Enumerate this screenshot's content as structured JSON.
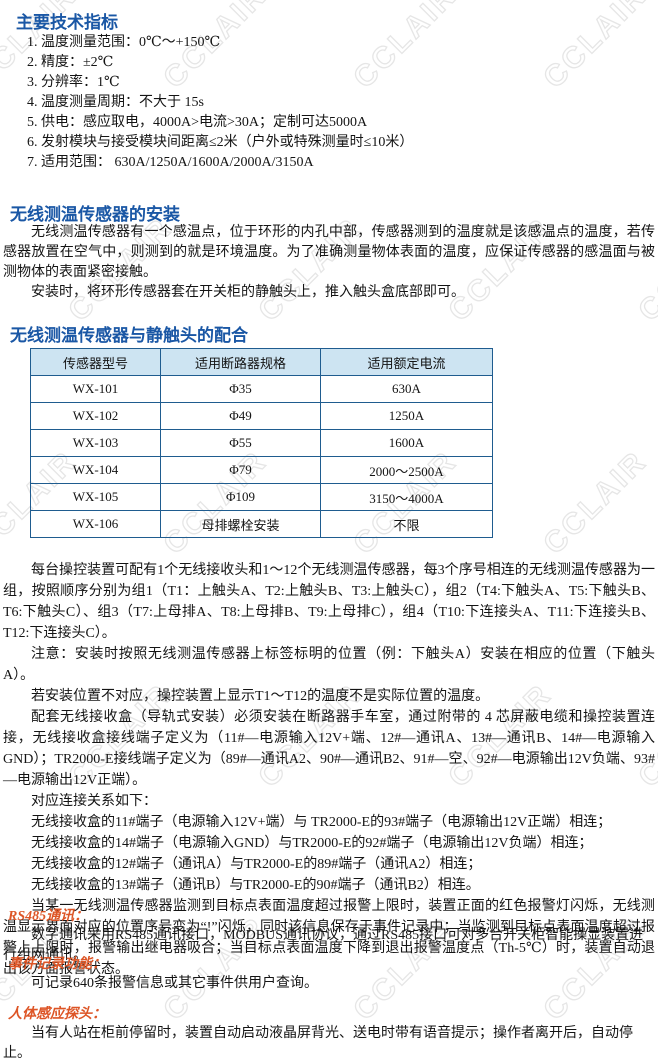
{
  "watermark": {
    "text": "CCLAIR"
  },
  "colors": {
    "heading_blue": "#1a57a5",
    "subheading_orange": "#dd5526",
    "table_border": "#1f5c8f",
    "table_header_bg": "#cde4f2"
  },
  "specs": {
    "heading": "主要技术指标",
    "items": [
      "1. 温度测量范围：0℃～+150℃",
      "2. 精度：±2℃",
      "3. 分辨率：1℃",
      "4. 温度测量周期：不大于 15s",
      "5. 供电：感应取电，4000A>电流>30A；定制可达5000A",
      "6. 发射模块与接受模块间距离≤2米（户外或特殊测量时≤10米）",
      "7. 适用范围： 630A/1250A/1600A/2000A/3150A"
    ]
  },
  "install": {
    "heading": "无线测温传感器的安装",
    "paragraphs": [
      "无线测温传感器有一个感温点，位于环形的内孔中部，传感器测到的温度就是该感温点的温度，若传感器放置在空气中，则测到的就是环境温度。为了准确测量物体表面的温度，应保证传感器的感温面与被测物体的表面紧密接触。",
      "安装时，将环形传感器套在开关柜的静触头上，推入触头盒底部即可。"
    ]
  },
  "matching": {
    "heading": "无线测温传感器与静触头的配合",
    "table": {
      "headers": [
        "传感器型号",
        "适用断路器规格",
        "适用额定电流"
      ],
      "rows": [
        [
          "WX-101",
          "Φ35",
          "630A"
        ],
        [
          "WX-102",
          "Φ49",
          "1250A"
        ],
        [
          "WX-103",
          "Φ55",
          "1600A"
        ],
        [
          "WX-104",
          "Φ79",
          "2000～2500A"
        ],
        [
          "WX-105",
          "Φ109",
          "3150～4000A"
        ],
        [
          "WX-106",
          "母排螺栓安装",
          "不限"
        ]
      ]
    },
    "paragraphs": [
      "每台操控装置可配有1个无线接收头和1～12个无线测温传感器，每3个序号相连的无线测温传感器为一组，按照顺序分别为组1（T1：上触头A、T2:上触头B、T3:上触头C），组2（T4:下触头A、T5:下触头B、T6:下触头C）、组3（T7:上母排A、T8:上母排B、T9:上母排C），组4（T10:下连接头A、T11:下连接头B、T12:下连接头C）。",
      "注意：安装时按照无线测温传感器上标签标明的位置（例：下触头A）安装在相应的位置（下触头A）。",
      "若安装位置不对应，操控装置上显示T1～T12的温度不是实际位置的温度。",
      "配套无线接收盒（导轨式安装）必须安装在断路器手车室，通过附带的 4 芯屏蔽电缆和操控装置连接，无线接收盒接线端子定义为（11#—电源输入12V+端、12#—通讯A、13#—通讯B、14#—电源输入GND）；TR2000-E接线端子定义为（89#—通讯A2、90#—通讯B2、91#—空、92#—电源输出12V负端、93#—电源输出12V正端）。",
      "对应连接关系如下：",
      "无线接收盒的11#端子（电源输入12V+端）与 TR2000-E的93#端子（电源输出12V正端）相连；",
      "无线接收盒的14#端子（电源输入GND）与TR2000-E的92#端子（电源输出12V负端）相连；",
      "无线接收盒的12#端子（通讯A）与TR2000-E的89#端子（通讯A2）相连；",
      "无线接收盒的13#端子（通讯B）与TR2000-E的90#端子（通讯B2）相连。",
      "当某一无线测温传感器监测到目标点表面温度超过报警上限时，装置正面的红色报警灯闪烁，无线测温显示界面对应的位置序号变为“!”闪烁，同时该信息保存于事件记录中；当监测到目标点表面温度超过报警上上限时，报警输出继电器吸合；当目标点表面温度下降到退出报警温度点（Th-5℃）时，装置自动退出该方面报警状态。"
    ]
  },
  "features": [
    {
      "heading": "RS485通讯：",
      "body": "数字通讯采用RS485通讯接口，MODBUS通讯协议，通过RS485接口可对多台开关柜智能操显装置进行组网通讯。"
    },
    {
      "heading": "事件记录功能：",
      "body": "可记录640条报警信息或其它事件供用户查询。"
    },
    {
      "heading": "人体感应探头：",
      "body": "当有人站在柜前停留时，装置自动启动液晶屏背光、送电时带有语音提示；操作者离开后，自动停止。"
    }
  ]
}
